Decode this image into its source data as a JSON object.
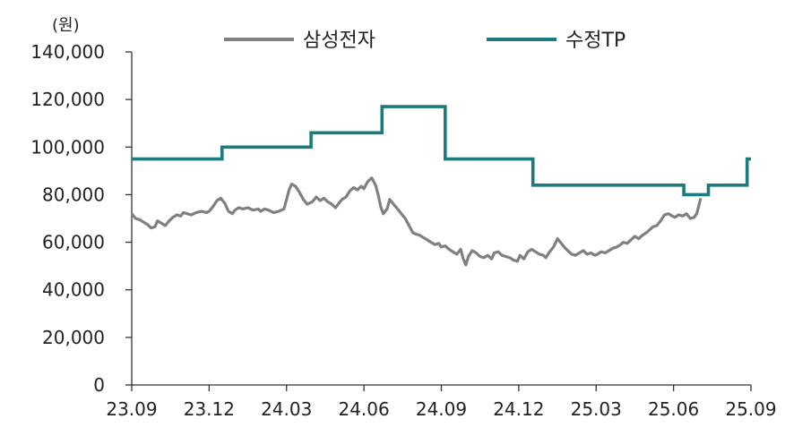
{
  "chart_data": {
    "type": "line",
    "y_unit": "(원)",
    "ylim": [
      0,
      140000
    ],
    "y_ticks": [
      0,
      20000,
      40000,
      60000,
      80000,
      100000,
      120000,
      140000
    ],
    "y_tick_labels": [
      "0",
      "20,000",
      "40,000",
      "60,000",
      "80,000",
      "100,000",
      "120,000",
      "140,000"
    ],
    "x_tick_labels": [
      "23.09",
      "23.12",
      "24.03",
      "24.06",
      "24.09",
      "24.12",
      "25.03",
      "25.06",
      "25.09"
    ],
    "xlim": [
      0,
      24
    ],
    "grid": false,
    "legend_position": "top",
    "series": [
      {
        "name": "삼성전자",
        "color": "#808080",
        "kind": "line",
        "points": [
          [
            0.0,
            72000
          ],
          [
            0.15,
            70000
          ],
          [
            0.3,
            69500
          ],
          [
            0.45,
            68500
          ],
          [
            0.6,
            67500
          ],
          [
            0.75,
            66000
          ],
          [
            0.9,
            66500
          ],
          [
            1.0,
            69000
          ],
          [
            1.15,
            68000
          ],
          [
            1.3,
            67000
          ],
          [
            1.45,
            69000
          ],
          [
            1.6,
            70500
          ],
          [
            1.75,
            71500
          ],
          [
            1.9,
            71000
          ],
          [
            2.0,
            72500
          ],
          [
            2.15,
            72000
          ],
          [
            2.3,
            71500
          ],
          [
            2.5,
            72500
          ],
          [
            2.7,
            73000
          ],
          [
            2.9,
            72500
          ],
          [
            3.0,
            73000
          ],
          [
            3.15,
            75000
          ],
          [
            3.3,
            77500
          ],
          [
            3.45,
            78500
          ],
          [
            3.6,
            76500
          ],
          [
            3.75,
            73000
          ],
          [
            3.9,
            72000
          ],
          [
            4.0,
            73500
          ],
          [
            4.15,
            74500
          ],
          [
            4.3,
            74000
          ],
          [
            4.5,
            74500
          ],
          [
            4.7,
            73500
          ],
          [
            4.9,
            74000
          ],
          [
            5.0,
            73000
          ],
          [
            5.15,
            74000
          ],
          [
            5.3,
            73500
          ],
          [
            5.5,
            72500
          ],
          [
            5.7,
            73000
          ],
          [
            5.9,
            74000
          ],
          [
            6.0,
            78000
          ],
          [
            6.1,
            82000
          ],
          [
            6.2,
            84500
          ],
          [
            6.35,
            83500
          ],
          [
            6.5,
            81000
          ],
          [
            6.65,
            78000
          ],
          [
            6.8,
            76000
          ],
          [
            7.0,
            77000
          ],
          [
            7.15,
            79000
          ],
          [
            7.3,
            77500
          ],
          [
            7.45,
            78500
          ],
          [
            7.6,
            77000
          ],
          [
            7.75,
            76000
          ],
          [
            7.9,
            74500
          ],
          [
            8.0,
            76000
          ],
          [
            8.15,
            78000
          ],
          [
            8.3,
            79000
          ],
          [
            8.45,
            81500
          ],
          [
            8.6,
            83000
          ],
          [
            8.75,
            82000
          ],
          [
            8.9,
            83500
          ],
          [
            9.0,
            82500
          ],
          [
            9.15,
            85500
          ],
          [
            9.3,
            87000
          ],
          [
            9.45,
            84000
          ],
          [
            9.55,
            80000
          ],
          [
            9.65,
            75000
          ],
          [
            9.75,
            72000
          ],
          [
            9.9,
            74000
          ],
          [
            10.0,
            78000
          ],
          [
            10.15,
            76000
          ],
          [
            10.3,
            74000
          ],
          [
            10.45,
            72000
          ],
          [
            10.6,
            70000
          ],
          [
            10.75,
            67000
          ],
          [
            10.9,
            64000
          ],
          [
            11.0,
            63500
          ],
          [
            11.15,
            63000
          ],
          [
            11.3,
            62000
          ],
          [
            11.45,
            61000
          ],
          [
            11.6,
            60000
          ],
          [
            11.75,
            59000
          ],
          [
            11.9,
            59500
          ],
          [
            12.0,
            58000
          ],
          [
            12.15,
            58500
          ],
          [
            12.3,
            57000
          ],
          [
            12.45,
            56000
          ],
          [
            12.6,
            55000
          ],
          [
            12.75,
            57000
          ],
          [
            12.85,
            53000
          ],
          [
            12.95,
            50500
          ],
          [
            13.05,
            54000
          ],
          [
            13.2,
            56500
          ],
          [
            13.35,
            55500
          ],
          [
            13.5,
            54000
          ],
          [
            13.65,
            53500
          ],
          [
            13.8,
            54500
          ],
          [
            13.95,
            53000
          ],
          [
            14.05,
            55500
          ],
          [
            14.2,
            56000
          ],
          [
            14.35,
            54500
          ],
          [
            14.5,
            54000
          ],
          [
            14.65,
            53500
          ],
          [
            14.8,
            52500
          ],
          [
            14.95,
            52000
          ],
          [
            15.05,
            54500
          ],
          [
            15.2,
            53000
          ],
          [
            15.35,
            56000
          ],
          [
            15.5,
            57000
          ],
          [
            15.65,
            56000
          ],
          [
            15.8,
            55000
          ],
          [
            15.95,
            54500
          ],
          [
            16.05,
            53500
          ],
          [
            16.2,
            56000
          ],
          [
            16.35,
            58000
          ],
          [
            16.5,
            61500
          ],
          [
            16.65,
            59500
          ],
          [
            16.8,
            57500
          ],
          [
            16.95,
            56000
          ],
          [
            17.05,
            55000
          ],
          [
            17.2,
            54500
          ],
          [
            17.35,
            55500
          ],
          [
            17.5,
            56500
          ],
          [
            17.65,
            55000
          ],
          [
            17.8,
            55500
          ],
          [
            17.95,
            54500
          ],
          [
            18.05,
            55000
          ],
          [
            18.2,
            56000
          ],
          [
            18.35,
            55500
          ],
          [
            18.5,
            56500
          ],
          [
            18.65,
            57500
          ],
          [
            18.8,
            58000
          ],
          [
            18.95,
            59000
          ],
          [
            19.05,
            60000
          ],
          [
            19.2,
            59500
          ],
          [
            19.35,
            61000
          ],
          [
            19.5,
            62500
          ],
          [
            19.65,
            61500
          ],
          [
            19.8,
            63000
          ],
          [
            19.95,
            64000
          ],
          [
            20.05,
            65000
          ],
          [
            20.2,
            66500
          ],
          [
            20.35,
            67000
          ],
          [
            20.5,
            69000
          ],
          [
            20.65,
            71500
          ],
          [
            20.8,
            72000
          ],
          [
            20.95,
            71000
          ],
          [
            21.05,
            70500
          ],
          [
            21.2,
            71500
          ],
          [
            21.35,
            71000
          ],
          [
            21.5,
            72000
          ],
          [
            21.65,
            70000
          ],
          [
            21.8,
            70500
          ],
          [
            21.9,
            72000
          ],
          [
            21.97,
            75000
          ],
          [
            22.05,
            78500
          ]
        ]
      },
      {
        "name": "수정TP",
        "color": "#1b7b7d",
        "kind": "step",
        "points": [
          [
            0.0,
            95000
          ],
          [
            3.5,
            95000
          ],
          [
            3.5,
            100000
          ],
          [
            6.95,
            100000
          ],
          [
            6.95,
            106000
          ],
          [
            9.7,
            106000
          ],
          [
            9.7,
            117000
          ],
          [
            12.15,
            117000
          ],
          [
            12.15,
            95000
          ],
          [
            15.55,
            95000
          ],
          [
            15.55,
            84000
          ],
          [
            21.4,
            84000
          ],
          [
            21.4,
            80000
          ],
          [
            22.35,
            80000
          ],
          [
            22.35,
            84000
          ],
          [
            23.85,
            84000
          ],
          [
            23.85,
            95000
          ],
          [
            24.0,
            95000
          ]
        ]
      }
    ]
  }
}
